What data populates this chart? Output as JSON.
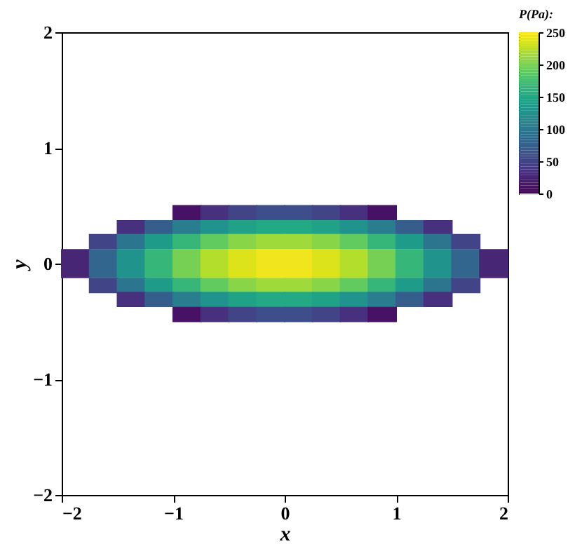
{
  "chart_data": {
    "type": "scatter",
    "marker": "square",
    "xlabel": "x",
    "ylabel": "y",
    "clabel": "P(Pa):",
    "xlim": [
      -2,
      2
    ],
    "ylim": [
      -2,
      2
    ],
    "xticks": [
      -2,
      -1,
      0,
      1,
      2
    ],
    "yticks": [
      -2,
      -1,
      0,
      1,
      2
    ],
    "clim": [
      0,
      250
    ],
    "cticks": [
      0,
      50,
      100,
      150,
      200,
      250
    ],
    "grid": false,
    "x": [
      -0.875,
      -0.625,
      -0.375,
      -0.125,
      0.125,
      0.375,
      0.625,
      0.875,
      -1.375,
      -1.125,
      -0.875,
      -0.625,
      -0.375,
      -0.125,
      0.125,
      0.375,
      0.625,
      0.875,
      1.125,
      1.375,
      -1.625,
      -1.375,
      -1.125,
      -0.875,
      -0.625,
      -0.375,
      -0.125,
      0.125,
      0.375,
      0.625,
      0.875,
      1.125,
      1.375,
      1.625,
      -1.875,
      -1.625,
      -1.375,
      -1.125,
      -0.875,
      -0.625,
      -0.375,
      -0.125,
      0.125,
      0.375,
      0.625,
      0.875,
      1.125,
      1.375,
      1.625,
      1.875,
      -1.875,
      -1.625,
      -1.375,
      -1.125,
      -0.875,
      -0.625,
      -0.375,
      -0.125,
      0.125,
      0.375,
      0.625,
      0.875,
      1.125,
      1.375,
      1.625,
      1.875,
      -1.625,
      -1.375,
      -1.125,
      -0.875,
      -0.625,
      -0.375,
      -0.125,
      0.125,
      0.375,
      0.625,
      0.875,
      1.125,
      1.375,
      1.625,
      -1.375,
      -1.125,
      -0.875,
      -0.625,
      -0.375,
      -0.125,
      0.125,
      0.375,
      0.625,
      0.875,
      1.125,
      1.375,
      -0.875,
      -0.625,
      -0.375,
      -0.125,
      0.125,
      0.375,
      0.625,
      0.875
    ],
    "values": [
      0.44,
      0.44,
      0.44,
      0.44,
      0.44,
      0.44,
      0.44,
      0.44,
      0.31,
      0.31,
      0.31,
      0.31,
      0.31,
      0.31,
      0.31,
      0.31,
      0.31,
      0.31,
      0.31,
      0.31,
      0.19,
      0.19,
      0.19,
      0.19,
      0.19,
      0.19,
      0.19,
      0.19,
      0.19,
      0.19,
      0.19,
      0.19,
      0.19,
      0.19,
      0.06,
      0.06,
      0.06,
      0.06,
      0.06,
      0.06,
      0.06,
      0.06,
      0.06,
      0.06,
      0.06,
      0.06,
      0.06,
      0.06,
      0.06,
      0.06,
      -0.06,
      -0.06,
      -0.06,
      -0.06,
      -0.06,
      -0.06,
      -0.06,
      -0.06,
      -0.06,
      -0.06,
      -0.06,
      -0.06,
      -0.06,
      -0.06,
      -0.06,
      -0.06,
      -0.19,
      -0.19,
      -0.19,
      -0.19,
      -0.19,
      -0.19,
      -0.19,
      -0.19,
      -0.19,
      -0.19,
      -0.19,
      -0.19,
      -0.19,
      -0.19,
      -0.31,
      -0.31,
      -0.31,
      -0.31,
      -0.31,
      -0.31,
      -0.31,
      -0.31,
      -0.31,
      -0.31,
      -0.31,
      -0.31,
      -0.44,
      -0.44,
      -0.44,
      -0.44,
      -0.44,
      -0.44,
      -0.44,
      -0.44
    ],
    "cvalues": [
      11,
      34,
      50,
      58,
      58,
      50,
      34,
      11,
      34,
      73,
      105,
      128,
      144,
      151,
      151,
      144,
      128,
      105,
      73,
      34,
      50,
      97,
      136,
      167,
      190,
      206,
      214,
      214,
      206,
      190,
      167,
      136,
      97,
      50,
      26,
      81,
      128,
      167,
      198,
      222,
      237,
      245,
      245,
      237,
      222,
      198,
      167,
      128,
      81,
      26,
      26,
      81,
      128,
      167,
      198,
      222,
      237,
      245,
      245,
      237,
      222,
      198,
      167,
      128,
      81,
      26,
      50,
      97,
      136,
      167,
      190,
      206,
      214,
      214,
      206,
      190,
      167,
      136,
      97,
      50,
      34,
      73,
      105,
      128,
      144,
      151,
      151,
      144,
      128,
      105,
      73,
      34,
      11,
      34,
      50,
      58,
      58,
      50,
      34,
      11
    ]
  }
}
